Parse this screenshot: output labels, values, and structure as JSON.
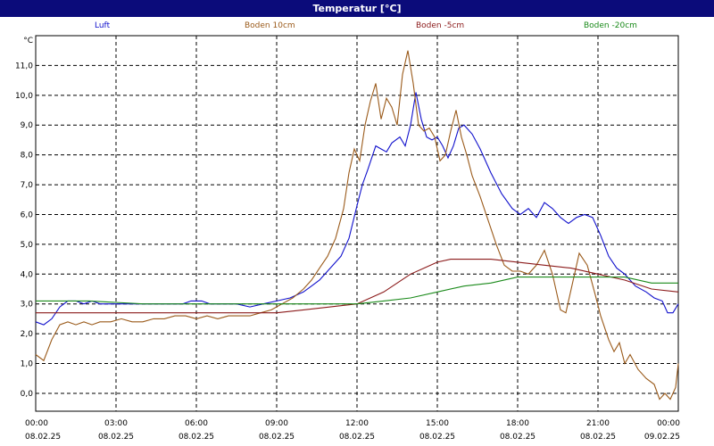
{
  "window": {
    "title": "Temperatur [°C]"
  },
  "chart_data": {
    "type": "line",
    "title": "Temperatur [°C]",
    "unit_label": "°C",
    "ylim": [
      -0.6,
      12.0
    ],
    "yticks": [
      0.0,
      1.0,
      2.0,
      3.0,
      4.0,
      5.0,
      6.0,
      7.0,
      8.0,
      9.0,
      10.0,
      11.0
    ],
    "ytick_labels": [
      "0,0",
      "1,0",
      "2,0",
      "3,0",
      "4,0",
      "5,0",
      "6,0",
      "7,0",
      "8,0",
      "9,0",
      "10,0",
      "11,0"
    ],
    "xlim": [
      0,
      24
    ],
    "xticks": [
      0,
      3,
      6,
      9,
      12,
      15,
      18,
      21,
      24
    ],
    "xtick_labels": [
      {
        "time": "00:00",
        "date": "08.02.25"
      },
      {
        "time": "03:00",
        "date": "08.02.25"
      },
      {
        "time": "06:00",
        "date": "08.02.25"
      },
      {
        "time": "09:00",
        "date": "08.02.25"
      },
      {
        "time": "12:00",
        "date": "08.02.25"
      },
      {
        "time": "15:00",
        "date": "08.02.25"
      },
      {
        "time": "18:00",
        "date": "08.02.25"
      },
      {
        "time": "21:00",
        "date": "08.02.25"
      },
      {
        "time": "00:00",
        "date": "09.02.25"
      }
    ],
    "grid": true,
    "legend_position": "top",
    "series": [
      {
        "name": "Luft",
        "color": "#1010cc",
        "points": [
          [
            0,
            2.4
          ],
          [
            0.3,
            2.3
          ],
          [
            0.6,
            2.5
          ],
          [
            0.9,
            2.9
          ],
          [
            1.2,
            3.1
          ],
          [
            1.5,
            3.1
          ],
          [
            1.8,
            3.0
          ],
          [
            2.1,
            3.1
          ],
          [
            2.4,
            3.0
          ],
          [
            2.8,
            3.0
          ],
          [
            3.5,
            3.0
          ],
          [
            4.5,
            3.0
          ],
          [
            5.5,
            3.0
          ],
          [
            5.8,
            3.1
          ],
          [
            6.2,
            3.1
          ],
          [
            6.5,
            3.0
          ],
          [
            7.5,
            3.0
          ],
          [
            8.0,
            2.9
          ],
          [
            8.5,
            3.0
          ],
          [
            9.0,
            3.1
          ],
          [
            9.5,
            3.2
          ],
          [
            10.0,
            3.4
          ],
          [
            10.3,
            3.6
          ],
          [
            10.6,
            3.8
          ],
          [
            11.0,
            4.2
          ],
          [
            11.4,
            4.6
          ],
          [
            11.7,
            5.2
          ],
          [
            12.0,
            6.3
          ],
          [
            12.2,
            7.0
          ],
          [
            12.4,
            7.5
          ],
          [
            12.7,
            8.3
          ],
          [
            12.9,
            8.2
          ],
          [
            13.1,
            8.1
          ],
          [
            13.3,
            8.4
          ],
          [
            13.6,
            8.6
          ],
          [
            13.8,
            8.3
          ],
          [
            14.0,
            9.0
          ],
          [
            14.2,
            10.1
          ],
          [
            14.4,
            9.2
          ],
          [
            14.6,
            8.6
          ],
          [
            14.8,
            8.5
          ],
          [
            15.0,
            8.6
          ],
          [
            15.2,
            8.3
          ],
          [
            15.4,
            7.9
          ],
          [
            15.6,
            8.3
          ],
          [
            15.8,
            8.9
          ],
          [
            16.0,
            9.0
          ],
          [
            16.3,
            8.7
          ],
          [
            16.6,
            8.2
          ],
          [
            17.0,
            7.4
          ],
          [
            17.4,
            6.7
          ],
          [
            17.8,
            6.2
          ],
          [
            18.1,
            6.0
          ],
          [
            18.4,
            6.2
          ],
          [
            18.7,
            5.9
          ],
          [
            19.0,
            6.4
          ],
          [
            19.3,
            6.2
          ],
          [
            19.6,
            5.9
          ],
          [
            19.9,
            5.7
          ],
          [
            20.2,
            5.9
          ],
          [
            20.5,
            6.0
          ],
          [
            20.8,
            5.9
          ],
          [
            21.1,
            5.3
          ],
          [
            21.4,
            4.6
          ],
          [
            21.7,
            4.2
          ],
          [
            22.0,
            4.0
          ],
          [
            22.4,
            3.6
          ],
          [
            22.8,
            3.4
          ],
          [
            23.1,
            3.2
          ],
          [
            23.4,
            3.1
          ],
          [
            23.6,
            2.7
          ],
          [
            23.8,
            2.7
          ],
          [
            24.0,
            3.0
          ]
        ]
      },
      {
        "name": "Boden 10cm",
        "color": "#9a5a1a",
        "points": [
          [
            0,
            1.3
          ],
          [
            0.3,
            1.1
          ],
          [
            0.6,
            1.8
          ],
          [
            0.9,
            2.3
          ],
          [
            1.2,
            2.4
          ],
          [
            1.5,
            2.3
          ],
          [
            1.8,
            2.4
          ],
          [
            2.1,
            2.3
          ],
          [
            2.4,
            2.4
          ],
          [
            2.8,
            2.4
          ],
          [
            3.2,
            2.5
          ],
          [
            3.6,
            2.4
          ],
          [
            4.0,
            2.4
          ],
          [
            4.4,
            2.5
          ],
          [
            4.8,
            2.5
          ],
          [
            5.2,
            2.6
          ],
          [
            5.6,
            2.6
          ],
          [
            6.0,
            2.5
          ],
          [
            6.4,
            2.6
          ],
          [
            6.8,
            2.5
          ],
          [
            7.2,
            2.6
          ],
          [
            7.6,
            2.6
          ],
          [
            8.0,
            2.6
          ],
          [
            8.4,
            2.7
          ],
          [
            8.8,
            2.8
          ],
          [
            9.2,
            3.0
          ],
          [
            9.6,
            3.2
          ],
          [
            10.0,
            3.5
          ],
          [
            10.3,
            3.8
          ],
          [
            10.6,
            4.2
          ],
          [
            10.9,
            4.6
          ],
          [
            11.2,
            5.2
          ],
          [
            11.5,
            6.2
          ],
          [
            11.7,
            7.4
          ],
          [
            11.9,
            8.2
          ],
          [
            12.1,
            7.8
          ],
          [
            12.3,
            9.0
          ],
          [
            12.5,
            9.8
          ],
          [
            12.7,
            10.4
          ],
          [
            12.9,
            9.2
          ],
          [
            13.1,
            9.9
          ],
          [
            13.3,
            9.6
          ],
          [
            13.5,
            9.0
          ],
          [
            13.7,
            10.7
          ],
          [
            13.9,
            11.5
          ],
          [
            14.1,
            10.4
          ],
          [
            14.3,
            9.0
          ],
          [
            14.5,
            8.8
          ],
          [
            14.7,
            8.9
          ],
          [
            14.9,
            8.6
          ],
          [
            15.1,
            7.8
          ],
          [
            15.3,
            8.0
          ],
          [
            15.5,
            8.8
          ],
          [
            15.7,
            9.5
          ],
          [
            15.9,
            8.6
          ],
          [
            16.1,
            8.0
          ],
          [
            16.3,
            7.3
          ],
          [
            16.6,
            6.6
          ],
          [
            16.9,
            5.8
          ],
          [
            17.2,
            5.0
          ],
          [
            17.5,
            4.3
          ],
          [
            17.8,
            4.1
          ],
          [
            18.1,
            4.1
          ],
          [
            18.4,
            4.0
          ],
          [
            18.7,
            4.3
          ],
          [
            19.0,
            4.8
          ],
          [
            19.3,
            4.0
          ],
          [
            19.6,
            2.8
          ],
          [
            19.8,
            2.7
          ],
          [
            20.0,
            3.5
          ],
          [
            20.3,
            4.7
          ],
          [
            20.6,
            4.3
          ],
          [
            20.9,
            3.3
          ],
          [
            21.1,
            2.6
          ],
          [
            21.4,
            1.8
          ],
          [
            21.6,
            1.4
          ],
          [
            21.8,
            1.7
          ],
          [
            22.0,
            1.0
          ],
          [
            22.2,
            1.3
          ],
          [
            22.5,
            0.8
          ],
          [
            22.8,
            0.5
          ],
          [
            23.1,
            0.3
          ],
          [
            23.3,
            -0.2
          ],
          [
            23.5,
            0.0
          ],
          [
            23.7,
            -0.2
          ],
          [
            23.9,
            0.2
          ],
          [
            24.0,
            1.0
          ]
        ]
      },
      {
        "name": "Boden -5cm",
        "color": "#8b1a1a",
        "points": [
          [
            0,
            2.7
          ],
          [
            1.0,
            2.7
          ],
          [
            2.0,
            2.7
          ],
          [
            3.0,
            2.7
          ],
          [
            4.0,
            2.7
          ],
          [
            5.0,
            2.7
          ],
          [
            6.0,
            2.7
          ],
          [
            7.0,
            2.7
          ],
          [
            8.0,
            2.7
          ],
          [
            9.0,
            2.7
          ],
          [
            10.0,
            2.8
          ],
          [
            11.0,
            2.9
          ],
          [
            12.0,
            3.0
          ],
          [
            12.5,
            3.2
          ],
          [
            13.0,
            3.4
          ],
          [
            13.5,
            3.7
          ],
          [
            14.0,
            4.0
          ],
          [
            14.5,
            4.2
          ],
          [
            15.0,
            4.4
          ],
          [
            15.5,
            4.5
          ],
          [
            16.0,
            4.5
          ],
          [
            17.0,
            4.5
          ],
          [
            18.0,
            4.4
          ],
          [
            19.0,
            4.3
          ],
          [
            20.0,
            4.2
          ],
          [
            21.0,
            4.0
          ],
          [
            22.0,
            3.8
          ],
          [
            23.0,
            3.5
          ],
          [
            24.0,
            3.4
          ]
        ]
      },
      {
        "name": "Boden -20cm",
        "color": "#1a8a1a",
        "points": [
          [
            0,
            3.1
          ],
          [
            2.0,
            3.1
          ],
          [
            4.0,
            3.0
          ],
          [
            6.0,
            3.0
          ],
          [
            8.0,
            3.0
          ],
          [
            9.0,
            3.0
          ],
          [
            11.0,
            3.0
          ],
          [
            12.0,
            3.0
          ],
          [
            13.0,
            3.1
          ],
          [
            14.0,
            3.2
          ],
          [
            15.0,
            3.4
          ],
          [
            16.0,
            3.6
          ],
          [
            17.0,
            3.7
          ],
          [
            18.0,
            3.9
          ],
          [
            19.0,
            3.9
          ],
          [
            20.0,
            3.9
          ],
          [
            21.0,
            3.9
          ],
          [
            22.0,
            3.9
          ],
          [
            23.0,
            3.7
          ],
          [
            24.0,
            3.7
          ]
        ]
      }
    ]
  }
}
